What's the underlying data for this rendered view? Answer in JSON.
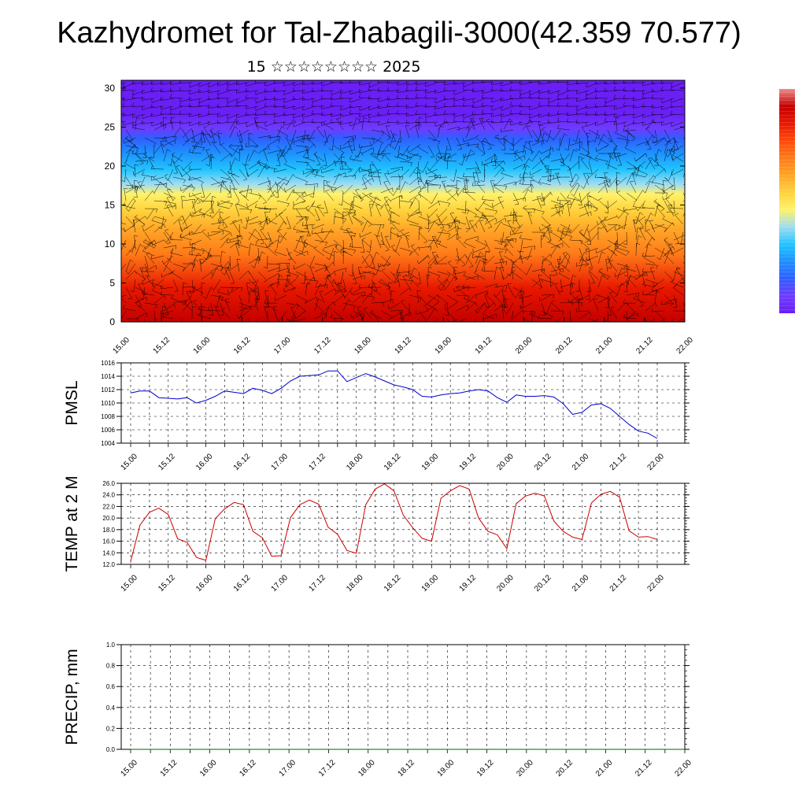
{
  "title": "Kazhydromet for Tal-Zhabagili-3000(42.359 70.577)",
  "subtitle": "15 ☆☆☆☆☆☆☆☆ 2025",
  "colors": {
    "pmsl_line": "#0000cc",
    "temp_line": "#cc0000",
    "precip_line": "#006400",
    "colormap": [
      "#6a1ff5",
      "#6f3bff",
      "#2f5fff",
      "#1e90ff",
      "#21c4ff",
      "#9fdcf2",
      "#fff26a",
      "#ffd23c",
      "#ffa526",
      "#ff7a18",
      "#ff4a0c",
      "#e81800",
      "#c40000",
      "#f08a8a"
    ]
  },
  "chart_data": [
    {
      "type": "heatmap",
      "name": "vertical-profile",
      "x_tick_labels": [
        "15.00",
        "15.12",
        "16.00",
        "16.12",
        "17.00",
        "17.12",
        "18.00",
        "18.12",
        "19.00",
        "19.12",
        "20.00",
        "20.12",
        "21.00",
        "21.12",
        "22.00"
      ],
      "y_ticks": [
        0,
        5,
        10,
        15,
        20,
        25,
        30
      ],
      "ylim": [
        0,
        31
      ],
      "overlay": "wind barbs"
    },
    {
      "type": "line",
      "ylabel": "PMSL",
      "ylim": [
        1004,
        1016
      ],
      "y_ticks": [
        "1004",
        "1006",
        "1008",
        "1010",
        "1012",
        "1014",
        "1016"
      ],
      "x_tick_labels": [
        "15.00",
        "15.12",
        "16.00",
        "16.12",
        "17.00",
        "17.12",
        "18.00",
        "18.12",
        "19.00",
        "19.12",
        "20.00",
        "20.12",
        "21.00",
        "21.12",
        "22.00"
      ],
      "series": [
        {
          "values": [
            1011.5,
            1011.8,
            1011.8,
            1010.8,
            1010.7,
            1010.6,
            1010.8,
            1010.0,
            1010.4,
            1011.0,
            1011.8,
            1011.6,
            1011.4,
            1012.2,
            1011.9,
            1011.4,
            1012.2,
            1013.3,
            1014.0,
            1014.1,
            1014.2,
            1014.8,
            1014.8,
            1013.2,
            1013.8,
            1014.4,
            1013.9,
            1013.3,
            1012.7,
            1012.4,
            1012.0,
            1011.0,
            1010.9,
            1011.2,
            1011.4,
            1011.5,
            1011.8,
            1012.0,
            1011.8,
            1010.8,
            1010.1,
            1011.2,
            1011.0,
            1011.0,
            1011.1,
            1010.9,
            1009.9,
            1008.3,
            1008.6,
            1009.7,
            1009.9,
            1009.2,
            1008.0,
            1006.8,
            1005.8,
            1005.5,
            1004.7
          ]
        }
      ]
    },
    {
      "type": "line",
      "ylabel": "TEMP at 2 M",
      "ylim": [
        12,
        26
      ],
      "y_ticks": [
        "12.0",
        "14.0",
        "16.0",
        "18.0",
        "20.0",
        "22.0",
        "24.0",
        "26.0"
      ],
      "x_tick_labels": [
        "15.00",
        "15.12",
        "16.00",
        "16.12",
        "17.00",
        "17.12",
        "18.00",
        "18.12",
        "19.00",
        "19.12",
        "20.00",
        "20.12",
        "21.00",
        "21.12",
        "22.00"
      ],
      "series": [
        {
          "values": [
            12.5,
            18.8,
            21.0,
            21.7,
            20.6,
            16.4,
            15.8,
            13.2,
            12.7,
            19.9,
            21.6,
            22.7,
            22.3,
            17.7,
            16.6,
            13.4,
            13.5,
            20.1,
            22.3,
            23.1,
            22.4,
            18.4,
            17.2,
            14.4,
            13.9,
            22.3,
            25.0,
            25.9,
            24.7,
            20.5,
            18.3,
            16.5,
            16.0,
            23.4,
            24.7,
            25.6,
            25.0,
            20.0,
            17.7,
            17.1,
            14.7,
            22.5,
            23.8,
            24.3,
            23.8,
            19.5,
            17.7,
            16.7,
            16.3,
            22.6,
            24.1,
            24.6,
            23.6,
            17.8,
            16.7,
            16.8,
            16.3
          ]
        }
      ]
    },
    {
      "type": "line",
      "ylabel": "PRECIP, mm",
      "ylim": [
        0,
        1
      ],
      "y_ticks": [
        "0.0",
        "0.2",
        "0.4",
        "0.6",
        "0.8",
        "1.0"
      ],
      "x_tick_labels": [
        "15.00",
        "15.12",
        "16.00",
        "16.12",
        "17.00",
        "17.12",
        "18.00",
        "18.12",
        "19.00",
        "19.12",
        "20.00",
        "20.12",
        "21.00",
        "21.12",
        "22.00"
      ],
      "series": [
        {
          "values": [
            0,
            0,
            0,
            0,
            0,
            0,
            0,
            0,
            0,
            0,
            0,
            0,
            0,
            0,
            0,
            0,
            0,
            0,
            0,
            0,
            0,
            0,
            0,
            0,
            0,
            0,
            0,
            0,
            0,
            0,
            0,
            0,
            0,
            0,
            0,
            0,
            0,
            0,
            0,
            0,
            0,
            0,
            0,
            0,
            0,
            0,
            0,
            0,
            0,
            0,
            0,
            0,
            0,
            0,
            0,
            0,
            0
          ]
        }
      ]
    }
  ]
}
